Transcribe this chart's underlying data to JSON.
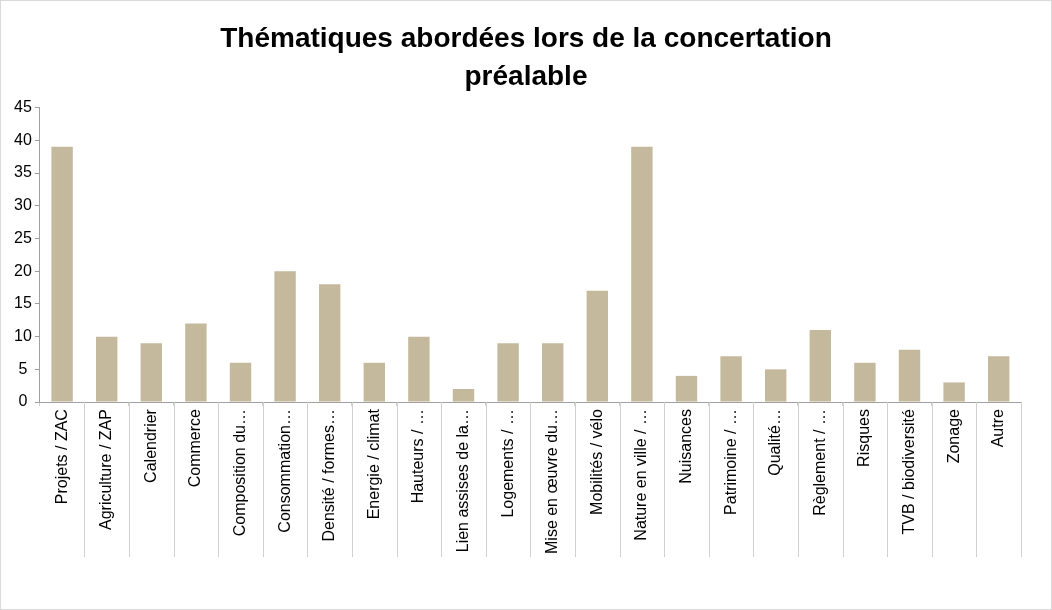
{
  "chart_data": {
    "type": "bar",
    "title": "Thématiques abordées lors de la concertation préalable",
    "categories": [
      "Projets / ZAC",
      "Agriculture / ZAP",
      "Calendrier",
      "Commerce",
      "Composition du…",
      "Consommation…",
      "Densité / formes…",
      "Energie / climat",
      "Hauteurs / …",
      "Lien assises de la…",
      "Logements / …",
      "Mise en œuvre du…",
      "Mobilités / vélo",
      "Nature en ville / …",
      "Nuisances",
      "Patrimoine / …",
      "Qualité…",
      "Règlement / …",
      "Risques",
      "TVB / biodiversité",
      "Zonage",
      "Autre"
    ],
    "values": [
      39,
      10,
      9,
      12,
      6,
      20,
      18,
      6,
      10,
      2,
      9,
      9,
      17,
      39,
      4,
      7,
      5,
      11,
      6,
      8,
      3,
      7
    ],
    "color": "#c4b99c",
    "ylim": [
      0,
      45
    ],
    "yticks": [
      0,
      5,
      10,
      15,
      20,
      25,
      30,
      35,
      40,
      45
    ],
    "grid": false,
    "legend": false
  }
}
